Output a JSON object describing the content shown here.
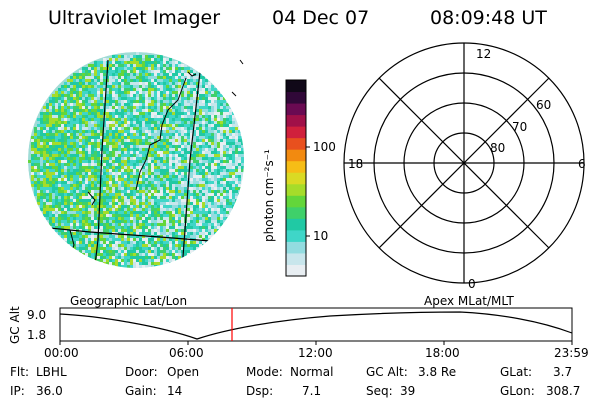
{
  "header": {
    "title": "Ultraviolet Imager",
    "date": "04 Dec 07",
    "time": "08:09:48 UT"
  },
  "colorbar": {
    "label": "photon cm⁻²s⁻¹",
    "ticks": [
      "100",
      "10"
    ],
    "colors": [
      "#e8eef2",
      "#c8e6ec",
      "#93dce0",
      "#3fd6c8",
      "#20c9a4",
      "#3fd06a",
      "#63d63a",
      "#a6dc2a",
      "#dada24",
      "#f6bd16",
      "#f28a10",
      "#e8501e",
      "#d0203c",
      "#a01048",
      "#6a0a52",
      "#300838",
      "#100818"
    ]
  },
  "image_caption": "Geographic Lat/Lon",
  "polar": {
    "caption": "Apex MLat/MLT",
    "mlt_labels": {
      "top": "12",
      "left": "18",
      "right": "6",
      "bottom": "0"
    },
    "lat_labels": [
      "60",
      "70",
      "80"
    ]
  },
  "altitude_plot": {
    "ylabel": "GC Alt",
    "yticks": [
      "9.0",
      "1.8"
    ],
    "xticks": [
      "00:00",
      "06:00",
      "12:00",
      "18:00",
      "23:59"
    ],
    "current_time_marker_color": "#ff0000"
  },
  "info": {
    "flt": {
      "label": "Flt:",
      "value": "LBHL"
    },
    "ip": {
      "label": "IP:",
      "value": "36.0"
    },
    "door": {
      "label": "Door:",
      "value": "Open"
    },
    "gain": {
      "label": "Gain:",
      "value": "14"
    },
    "mode": {
      "label": "Mode:",
      "value": "Normal"
    },
    "dsp": {
      "label": "Dsp:",
      "value": "7.1"
    },
    "gcalt": {
      "label": "GC Alt:",
      "value": "3.8 Re"
    },
    "seq": {
      "label": "Seq:",
      "value": "39"
    },
    "glat": {
      "label": "GLat:",
      "value": "3.7"
    },
    "glon": {
      "label": "GLon:",
      "value": "308.7"
    }
  }
}
